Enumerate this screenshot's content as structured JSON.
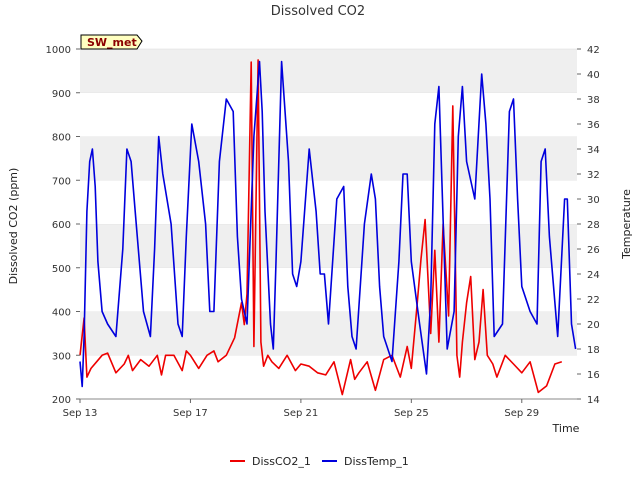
{
  "chart_data": {
    "type": "line",
    "title": "Dissolved CO2",
    "badge": "SW_met",
    "xlabel": "Time",
    "ylabel_left": "Dissolved CO2 (ppm)",
    "ylabel_right": "Temperature",
    "xlim": [
      0,
      18
    ],
    "ylim_left": [
      200,
      1000
    ],
    "ylim_right": [
      14,
      42
    ],
    "x_ticks": [
      {
        "x": 0,
        "label": "Sep 13"
      },
      {
        "x": 4,
        "label": "Sep 17"
      },
      {
        "x": 8,
        "label": "Sep 21"
      },
      {
        "x": 12,
        "label": "Sep 25"
      },
      {
        "x": 16,
        "label": "Sep 29"
      }
    ],
    "y_ticks_left": [
      200,
      300,
      400,
      500,
      600,
      700,
      800,
      900,
      1000
    ],
    "y_ticks_right": [
      14,
      16,
      18,
      20,
      22,
      24,
      26,
      28,
      30,
      32,
      34,
      36,
      38,
      40,
      42
    ],
    "grid": "horizontal bands",
    "legend_position": "bottom-center",
    "colors": {
      "DissCO2_1": "#ee0000",
      "DissTemp_1": "#0000dd",
      "band": "#efefef",
      "badge_bg": "#ffffc0"
    },
    "series": [
      {
        "name": "DissCO2_1",
        "axis": "left",
        "x": [
          0,
          0.15,
          0.25,
          0.4,
          0.6,
          0.8,
          1.0,
          1.3,
          1.6,
          1.75,
          1.9,
          2.2,
          2.5,
          2.8,
          2.95,
          3.1,
          3.4,
          3.7,
          3.85,
          4.0,
          4.3,
          4.6,
          4.85,
          5.0,
          5.3,
          5.6,
          5.85,
          5.95,
          6.05,
          6.2,
          6.3,
          6.45,
          6.55,
          6.65,
          6.8,
          6.95,
          7.2,
          7.5,
          7.8,
          8.0,
          8.3,
          8.6,
          8.9,
          9.2,
          9.5,
          9.8,
          9.95,
          10.1,
          10.4,
          10.7,
          11.0,
          11.3,
          11.6,
          11.85,
          12.0,
          12.2,
          12.35,
          12.5,
          12.7,
          12.85,
          13.0,
          13.15,
          13.35,
          13.5,
          13.65,
          13.75,
          13.85,
          14.0,
          14.15,
          14.3,
          14.45,
          14.6,
          14.75,
          14.95,
          15.1,
          15.4,
          15.7,
          16.0,
          16.3,
          16.6,
          16.9,
          17.2,
          17.45
        ],
        "y": [
          300,
          385,
          250,
          270,
          285,
          300,
          305,
          260,
          280,
          300,
          265,
          290,
          275,
          300,
          255,
          300,
          300,
          265,
          310,
          300,
          270,
          300,
          310,
          285,
          300,
          340,
          420,
          370,
          440,
          970,
          320,
          975,
          330,
          275,
          300,
          285,
          270,
          300,
          265,
          280,
          275,
          260,
          255,
          285,
          210,
          290,
          245,
          260,
          285,
          220,
          290,
          300,
          250,
          320,
          270,
          410,
          520,
          610,
          350,
          540,
          330,
          600,
          390,
          870,
          300,
          250,
          330,
          420,
          480,
          290,
          330,
          450,
          300,
          280,
          250,
          300,
          280,
          260,
          285,
          215,
          230,
          280,
          285
        ]
      },
      {
        "name": "DissTemp_1",
        "axis": "right",
        "x": [
          0,
          0.08,
          0.15,
          0.25,
          0.35,
          0.45,
          0.55,
          0.65,
          0.8,
          1.0,
          1.3,
          1.55,
          1.7,
          1.85,
          2.0,
          2.3,
          2.55,
          2.7,
          2.85,
          3.0,
          3.3,
          3.55,
          3.7,
          3.85,
          4.05,
          4.3,
          4.55,
          4.7,
          4.85,
          5.05,
          5.3,
          5.55,
          5.7,
          5.85,
          6.05,
          6.3,
          6.5,
          6.6,
          6.7,
          6.9,
          7.0,
          7.1,
          7.3,
          7.55,
          7.7,
          7.85,
          8.0,
          8.3,
          8.55,
          8.7,
          8.85,
          9.0,
          9.3,
          9.55,
          9.7,
          9.85,
          10.0,
          10.3,
          10.55,
          10.7,
          10.85,
          11.0,
          11.3,
          11.55,
          11.7,
          11.85,
          12.0,
          12.3,
          12.55,
          12.7,
          12.85,
          13.0,
          13.3,
          13.55,
          13.7,
          13.85,
          14.0,
          14.3,
          14.55,
          14.7,
          14.85,
          15.0,
          15.3,
          15.55,
          15.7,
          15.85,
          16.0,
          16.3,
          16.55,
          16.7,
          16.85,
          17.0,
          17.3,
          17.55,
          17.65,
          17.8,
          17.95
        ],
        "y": [
          17,
          15,
          19,
          29,
          33,
          34,
          31,
          25,
          21,
          20,
          19,
          26,
          34,
          33,
          29,
          21,
          19,
          26,
          35,
          32,
          28,
          20,
          19,
          27,
          36,
          33,
          28,
          21,
          21,
          33,
          38,
          37,
          27,
          22,
          20,
          35,
          41,
          37,
          29,
          20,
          18,
          25,
          41,
          33,
          24,
          23,
          25,
          34,
          29,
          24,
          24,
          20,
          30,
          31,
          23,
          19,
          18,
          28,
          32,
          30,
          23,
          19,
          17,
          25,
          32,
          32,
          25,
          20,
          16,
          22,
          36,
          39,
          18,
          21,
          35,
          39,
          33,
          30,
          40,
          36,
          30,
          19,
          20,
          37,
          38,
          30,
          23,
          21,
          20,
          33,
          34,
          27,
          19,
          30,
          30,
          20,
          18
        ]
      }
    ]
  }
}
